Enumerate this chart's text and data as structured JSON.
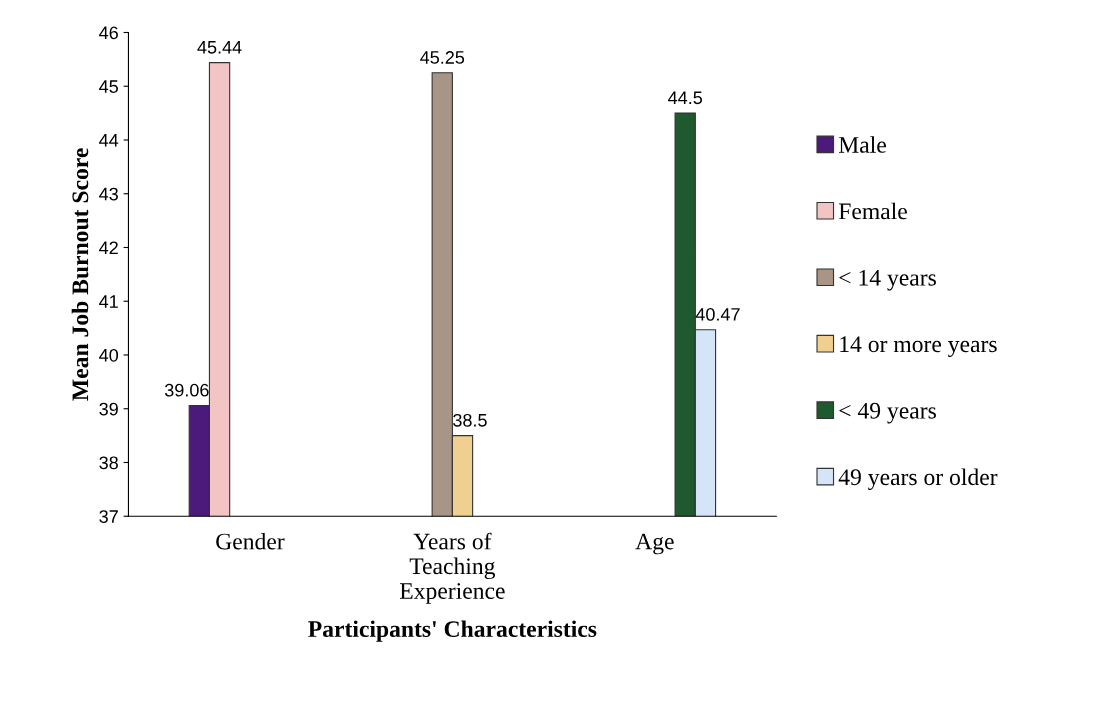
{
  "chart_data": {
    "type": "bar",
    "xlabel": "Participants' Characteristics",
    "ylabel": "Mean Job Burnout Score",
    "categories": [
      "Gender",
      "Years of Teaching Experience",
      "Age"
    ],
    "series": [
      {
        "name": "Male",
        "color": "#4b1a7a",
        "values": [
          39.06,
          null,
          null
        ]
      },
      {
        "name": "Female",
        "color": "#f2c4c4",
        "values": [
          45.44,
          null,
          null
        ]
      },
      {
        "name": "< 14 years",
        "color": "#a89585",
        "values": [
          null,
          45.25,
          null
        ]
      },
      {
        "name": "14 or more years",
        "color": "#f0d090",
        "values": [
          null,
          38.5,
          null
        ]
      },
      {
        "name": "< 49 years",
        "color": "#1e5a2e",
        "values": [
          null,
          null,
          44.5
        ]
      },
      {
        "name": "49 years or older",
        "color": "#d6e4f8",
        "values": [
          null,
          null,
          40.47
        ]
      }
    ],
    "ylim": [
      37,
      46
    ],
    "yticks": [
      37,
      38,
      39,
      40,
      41,
      42,
      43,
      44,
      45,
      46
    ],
    "data_labels": true,
    "grid": false,
    "legend": "right"
  }
}
